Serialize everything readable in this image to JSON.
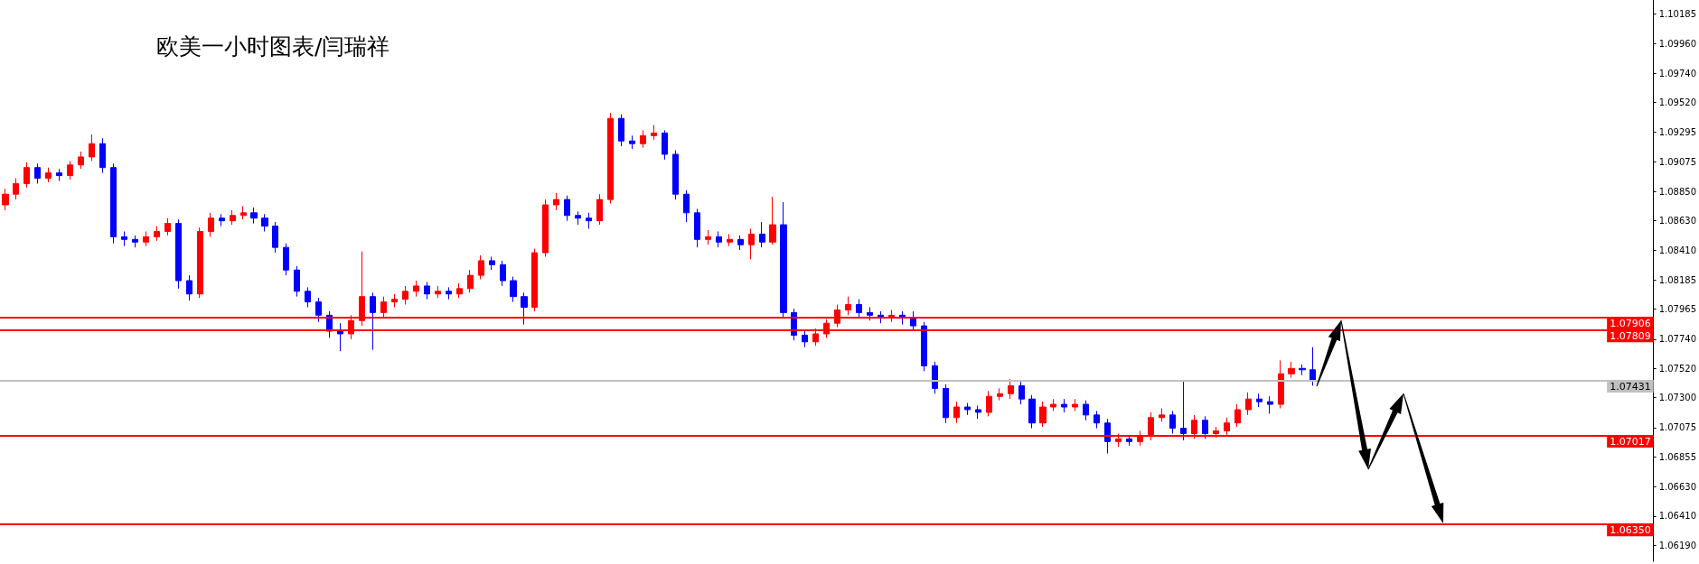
{
  "chart_data": {
    "type": "candlestick",
    "title": "欧美一小时图表/闫瑞祥",
    "colors": [
      "#ff0000",
      "#ff0000",
      "#ff0000",
      "#0000ff",
      "#ff0000",
      "#0000ff",
      "#ff0000",
      "#ff0000",
      "#ff0000",
      "#0000ff",
      "#0000ff",
      "#0000ff",
      "#0000ff",
      "#ff0000",
      "#ff0000",
      "#ff0000",
      "#0000ff",
      "#0000ff",
      "#ff0000",
      "#ff0000",
      "#0000ff",
      "#ff0000",
      "#ff0000",
      "#0000ff",
      "#0000ff",
      "#0000ff",
      "#0000ff",
      "#0000ff",
      "#0000ff",
      "#0000ff",
      "#0000ff",
      "#0000ff",
      "#ff0000",
      "#ff0000",
      "#0000ff",
      "#ff0000",
      "#ff0000",
      "#ff0000",
      "#ff0000",
      "#0000ff",
      "#ff0000",
      "#0000ff",
      "#ff0000",
      "#ff0000",
      "#ff0000",
      "#0000ff",
      "#0000ff",
      "#0000ff",
      "#0000ff",
      "#ff0000",
      "#ff0000",
      "#ff0000",
      "#0000ff",
      "#0000ff",
      "#0000ff",
      "#ff0000",
      "#ff0000",
      "#0000ff",
      "#0000ff",
      "#ff0000",
      "#ff0000",
      "#0000ff",
      "#0000ff",
      "#0000ff",
      "#0000ff",
      "#ff0000",
      "#0000ff",
      "#ff0000",
      "#0000ff",
      "#ff0000",
      "#0000ff",
      "#ff0000",
      "#0000ff",
      "#0000ff",
      "#0000ff",
      "#ff0000",
      "#ff0000",
      "#ff0000",
      "#ff0000",
      "#0000ff",
      "#0000ff",
      "#0000ff",
      "#ff0000",
      "#0000ff",
      "#0000ff",
      "#0000ff",
      "#0000ff",
      "#0000ff",
      "#ff0000",
      "#0000ff",
      "#0000ff",
      "#ff0000",
      "#ff0000",
      "#ff0000",
      "#0000ff",
      "#0000ff",
      "#ff0000",
      "#ff0000",
      "#0000ff",
      "#ff0000",
      "#0000ff",
      "#0000ff",
      "#0000ff",
      "#ff0000",
      "#0000ff",
      "#ff0000",
      "#ff0000",
      "#ff0000",
      "#0000ff",
      "#0000ff",
      "#ff0000",
      "#0000ff",
      "#ff0000",
      "#ff0000",
      "#ff0000",
      "#ff0000",
      "#0000ff",
      "#0000ff",
      "#ff0000",
      "#ff0000",
      "#0000ff",
      "#0000ff",
      null,
      null,
      null,
      null,
      null,
      null,
      null,
      null,
      null,
      null,
      null,
      null,
      null,
      null,
      null,
      null,
      null,
      null,
      null,
      null,
      null,
      null,
      null,
      null,
      null,
      null,
      null,
      null,
      null,
      null,
      null
    ],
    "categories": [
      null,
      null,
      null,
      null,
      null,
      null,
      null,
      null,
      null,
      null,
      null,
      null,
      null,
      null,
      null,
      null,
      null,
      null,
      null,
      null,
      null,
      null,
      null,
      null,
      null,
      null,
      null,
      null,
      null,
      null,
      null,
      null,
      null,
      null,
      null,
      null,
      null,
      null,
      null,
      null,
      null,
      null,
      null,
      null,
      null,
      null,
      null,
      null,
      null,
      null,
      null,
      null,
      null,
      null,
      null,
      null,
      null,
      null,
      null,
      null,
      null,
      null,
      null,
      null,
      null,
      null,
      null,
      null,
      null,
      null,
      null,
      null,
      null,
      null,
      null,
      null,
      null,
      null,
      null,
      null,
      null,
      null,
      null,
      null,
      null,
      null,
      null,
      null,
      null,
      null,
      null,
      null,
      null,
      null,
      null,
      null,
      null,
      null,
      null,
      null,
      null,
      null,
      null,
      null,
      null,
      null,
      null,
      null,
      null,
      null,
      null,
      null,
      null,
      null,
      null,
      null,
      null,
      null,
      null,
      null,
      null,
      null,
      null,
      null,
      null,
      null,
      null,
      null,
      null,
      null,
      null,
      null,
      null,
      null,
      null,
      null,
      null,
      null,
      null,
      null,
      null,
      null,
      null,
      null,
      null,
      null,
      null,
      null,
      null,
      null,
      null,
      null,
      null
    ],
    "ohlc": [
      [
        1.0875,
        1.0887,
        1.0871,
        1.0883
      ],
      [
        1.0883,
        1.0895,
        1.0879,
        1.0891
      ],
      [
        1.0891,
        1.0907,
        1.0888,
        1.0903
      ],
      [
        1.0903,
        1.0906,
        1.0891,
        1.0895
      ],
      [
        1.0895,
        1.0903,
        1.0892,
        1.0899
      ],
      [
        1.0899,
        1.0902,
        1.0893,
        1.0897
      ],
      [
        1.0897,
        1.0908,
        1.0894,
        1.0905
      ],
      [
        1.0905,
        1.0915,
        1.0902,
        1.0911
      ],
      [
        1.0911,
        1.0928,
        1.0908,
        1.0921
      ],
      [
        1.0921,
        1.0925,
        1.0899,
        1.0903
      ],
      [
        1.0903,
        1.0906,
        1.0846,
        1.0851
      ],
      [
        1.0851,
        1.0855,
        1.0844,
        1.0849
      ],
      [
        1.0849,
        1.0852,
        1.0843,
        1.0847
      ],
      [
        1.0847,
        1.0855,
        1.0844,
        1.0851
      ],
      [
        1.0851,
        1.0859,
        1.0848,
        1.0855
      ],
      [
        1.0855,
        1.0865,
        1.0852,
        1.0861
      ],
      [
        1.0861,
        1.0864,
        1.0812,
        1.0818
      ],
      [
        1.0818,
        1.0822,
        1.0803,
        1.0808
      ],
      [
        1.0808,
        1.0858,
        1.0805,
        1.0855
      ],
      [
        1.0855,
        1.0869,
        1.0851,
        1.0865
      ],
      [
        1.0865,
        1.0868,
        1.0859,
        1.0863
      ],
      [
        1.0863,
        1.0871,
        1.086,
        1.0867
      ],
      [
        1.0867,
        1.0874,
        1.0864,
        1.0869
      ],
      [
        1.0869,
        1.0873,
        1.0861,
        1.0865
      ],
      [
        1.0865,
        1.0868,
        1.0855,
        1.0859
      ],
      [
        1.0859,
        1.0862,
        1.0839,
        1.0843
      ],
      [
        1.0843,
        1.0846,
        1.0822,
        1.0826
      ],
      [
        1.0826,
        1.0829,
        1.0806,
        1.081
      ],
      [
        1.081,
        1.0813,
        1.0798,
        1.0802
      ],
      [
        1.0802,
        1.0805,
        1.0787,
        1.0792
      ],
      [
        1.0792,
        1.0795,
        1.0775,
        1.078
      ],
      [
        1.078,
        1.0786,
        1.0765,
        1.0778
      ],
      [
        1.0778,
        1.0792,
        1.0774,
        1.0788
      ],
      [
        1.0788,
        1.084,
        1.0784,
        1.0806
      ],
      [
        1.0806,
        1.0809,
        1.0766,
        1.0794
      ],
      [
        1.0794,
        1.0806,
        1.079,
        1.0802
      ],
      [
        1.0802,
        1.0808,
        1.0798,
        1.0804
      ],
      [
        1.0804,
        1.0814,
        1.08,
        1.081
      ],
      [
        1.081,
        1.0818,
        1.0806,
        1.0814
      ],
      [
        1.0814,
        1.0817,
        1.0804,
        1.0808
      ],
      [
        1.0808,
        1.0814,
        1.0805,
        1.081
      ],
      [
        1.081,
        1.0813,
        1.0804,
        1.0808
      ],
      [
        1.0808,
        1.0816,
        1.0805,
        1.0812
      ],
      [
        1.0812,
        1.0826,
        1.0809,
        1.0822
      ],
      [
        1.0822,
        1.0837,
        1.0819,
        1.0833
      ],
      [
        1.0833,
        1.0836,
        1.0826,
        1.083
      ],
      [
        1.083,
        1.0833,
        1.0814,
        1.0818
      ],
      [
        1.0818,
        1.0821,
        1.0802,
        1.0806
      ],
      [
        1.0806,
        1.0809,
        1.0785,
        1.0798
      ],
      [
        1.0798,
        1.0842,
        1.0795,
        1.0839
      ],
      [
        1.0839,
        1.0879,
        1.0836,
        1.0875
      ],
      [
        1.0875,
        1.0884,
        1.0871,
        1.0879
      ],
      [
        1.0879,
        1.0882,
        1.0863,
        1.0867
      ],
      [
        1.0867,
        1.087,
        1.086,
        1.0865
      ],
      [
        1.0865,
        1.0869,
        1.0857,
        1.0863
      ],
      [
        1.0863,
        1.0883,
        1.086,
        1.0879
      ],
      [
        1.0879,
        1.0944,
        1.0876,
        1.094
      ],
      [
        1.094,
        1.0943,
        1.0919,
        1.0923
      ],
      [
        1.0923,
        1.0927,
        1.0917,
        1.0921
      ],
      [
        1.0921,
        1.0931,
        1.0918,
        1.0927
      ],
      [
        1.0927,
        1.0935,
        1.0924,
        1.0929
      ],
      [
        1.0929,
        1.0931,
        1.0909,
        1.0913
      ],
      [
        1.0913,
        1.0916,
        1.0879,
        1.0883
      ],
      [
        1.0883,
        1.0886,
        1.0862,
        1.0869
      ],
      [
        1.0869,
        1.0872,
        1.0843,
        1.0849
      ],
      [
        1.0849,
        1.0856,
        1.0845,
        1.0851
      ],
      [
        1.0851,
        1.0855,
        1.0843,
        1.0847
      ],
      [
        1.0847,
        1.0853,
        1.0844,
        1.0849
      ],
      [
        1.0849,
        1.0852,
        1.0841,
        1.0845
      ],
      [
        1.0845,
        1.0857,
        1.0834,
        1.0853
      ],
      [
        1.0853,
        1.0862,
        1.0843,
        1.0847
      ],
      [
        1.0847,
        1.0881,
        1.0845,
        1.086
      ],
      [
        1.086,
        1.0877,
        1.079,
        1.0794
      ],
      [
        1.0794,
        1.0797,
        1.0773,
        1.0777
      ],
      [
        1.0777,
        1.078,
        1.0768,
        1.0772
      ],
      [
        1.0772,
        1.0782,
        1.0769,
        1.0778
      ],
      [
        1.0778,
        1.0789,
        1.0775,
        1.0786
      ],
      [
        1.0786,
        1.08,
        1.0783,
        1.0796
      ],
      [
        1.0796,
        1.0806,
        1.0792,
        1.08
      ],
      [
        1.08,
        1.0804,
        1.079,
        1.0794
      ],
      [
        1.0794,
        1.0798,
        1.0788,
        1.0792
      ],
      [
        1.0792,
        1.0795,
        1.0786,
        1.079
      ],
      [
        1.079,
        1.0796,
        1.0787,
        1.0792
      ],
      [
        1.0792,
        1.0795,
        1.0785,
        1.079
      ],
      [
        1.079,
        1.0795,
        1.078,
        1.0784
      ],
      [
        1.0784,
        1.0787,
        1.075,
        1.0754
      ],
      [
        1.0754,
        1.0757,
        1.0733,
        1.0737
      ],
      [
        1.0737,
        1.074,
        1.0711,
        1.0715
      ],
      [
        1.0715,
        1.0727,
        1.0711,
        1.0723
      ],
      [
        1.0723,
        1.0726,
        1.0717,
        1.0721
      ],
      [
        1.0721,
        1.0724,
        1.0714,
        1.0719
      ],
      [
        1.0719,
        1.0735,
        1.0716,
        1.0731
      ],
      [
        1.0731,
        1.0737,
        1.0728,
        1.0733
      ],
      [
        1.0733,
        1.0744,
        1.0729,
        1.0739
      ],
      [
        1.0739,
        1.0742,
        1.0725,
        1.0729
      ],
      [
        1.0729,
        1.0732,
        1.0707,
        1.0711
      ],
      [
        1.0711,
        1.0727,
        1.0708,
        1.0723
      ],
      [
        1.0723,
        1.0729,
        1.072,
        1.0725
      ],
      [
        1.0725,
        1.0729,
        1.0719,
        1.0723
      ],
      [
        1.0723,
        1.0729,
        1.072,
        1.0725
      ],
      [
        1.0725,
        1.0728,
        1.0713,
        1.0717
      ],
      [
        1.0717,
        1.072,
        1.0707,
        1.0711
      ],
      [
        1.0711,
        1.0714,
        1.0688,
        1.0697
      ],
      [
        1.0697,
        1.0703,
        1.0693,
        1.0699
      ],
      [
        1.0699,
        1.0702,
        1.0694,
        1.0697
      ],
      [
        1.0697,
        1.0705,
        1.0694,
        1.0701
      ],
      [
        1.0701,
        1.0719,
        1.0698,
        1.0715
      ],
      [
        1.0715,
        1.0722,
        1.0712,
        1.0717
      ],
      [
        1.0717,
        1.072,
        1.0703,
        1.0707
      ],
      [
        1.0707,
        1.0742,
        1.0698,
        1.0703
      ],
      [
        1.0703,
        1.0717,
        1.0699,
        1.0713
      ],
      [
        1.0713,
        1.0716,
        1.0699,
        1.0703
      ],
      [
        1.0703,
        1.0708,
        1.07,
        1.0705
      ],
      [
        1.0705,
        1.0715,
        1.0702,
        1.0711
      ],
      [
        1.0711,
        1.0725,
        1.0708,
        1.0721
      ],
      [
        1.0721,
        1.0734,
        1.0717,
        1.0729
      ],
      [
        1.0729,
        1.0733,
        1.0723,
        1.0727
      ],
      [
        1.0727,
        1.0731,
        1.0718,
        1.0725
      ],
      [
        1.0725,
        1.0758,
        1.0722,
        1.0748
      ],
      [
        1.0748,
        1.0757,
        1.0745,
        1.0752
      ],
      [
        1.0752,
        1.0755,
        1.0747,
        1.0751
      ],
      [
        1.0751,
        1.0768,
        1.0739,
        1.0743
      ],
      null,
      null,
      null,
      null,
      null,
      null,
      null,
      null,
      null,
      null,
      null,
      null,
      null,
      null,
      null,
      null,
      null,
      null,
      null,
      null,
      null,
      null,
      null,
      null,
      null,
      null,
      null,
      null,
      null,
      null,
      null
    ],
    "ylim": [
      1.0607,
      1.1029
    ],
    "yticks": [
      1.10185,
      {
        "value": 1.0996,
        "label": "1.09960"
      },
      {
        "value": 1.0974,
        "label": "1.09740"
      },
      {
        "value": 1.0952,
        "label": "1.09520"
      },
      1.09295,
      1.09075,
      {
        "value": 1.0885,
        "label": "1.08850"
      },
      {
        "value": 1.0863,
        "label": "1.08630"
      },
      {
        "value": 1.0841,
        "label": "1.08410"
      },
      1.08185,
      1.07965,
      {
        "value": 1.0774,
        "label": "1.07740"
      },
      {
        "value": 1.0752,
        "label": "1.07520"
      },
      {
        "value": 1.073,
        "label": "1.07300"
      },
      1.07075,
      1.06855,
      {
        "value": 1.0663,
        "label": "1.06630"
      },
      {
        "value": 1.0641,
        "label": "1.06410"
      },
      {
        "value": 1.0619,
        "label": "1.06190"
      }
    ],
    "tick_labels": "y",
    "ref_lines": [
      {
        "axis": "y",
        "value": 1.07906,
        "label": "1.07906",
        "color": "#ff0000"
      },
      {
        "axis": "y",
        "value": 1.07809,
        "label": "1.07809",
        "color": "#ff0000"
      },
      {
        "axis": "y",
        "value": 1.07431,
        "label": "1.07431",
        "color": "#c0c0c0"
      },
      {
        "axis": "y",
        "value": 1.07017,
        "label": "1.07017",
        "color": "#ff0000"
      },
      {
        "axis": "y",
        "value": 1.0635,
        "label": "1.06350",
        "color": "#ff0000"
      }
    ]
  }
}
